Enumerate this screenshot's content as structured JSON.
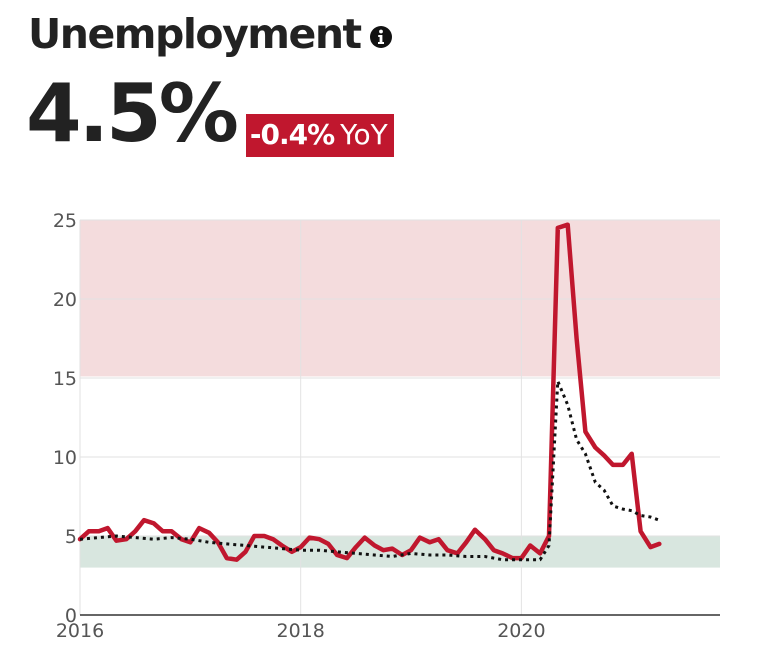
{
  "header": {
    "title": "Unemployment",
    "value": "4.5%",
    "change": "-0.4%",
    "change_unit": "YoY",
    "info_icon": "info-circle-icon"
  },
  "colors": {
    "primary_line": "#c0172e",
    "badge": "#c0172e",
    "high_band": "#f4dcdd",
    "low_band": "#d8e6df",
    "reference_line": "#111111"
  },
  "chart_data": {
    "type": "line",
    "title": "",
    "xlabel": "",
    "ylabel": "",
    "xlim": [
      2016.0,
      2021.8
    ],
    "ylim": [
      0,
      25
    ],
    "x_ticks": [
      "2016",
      "2018",
      "2020"
    ],
    "y_ticks": [
      "0",
      "5",
      "10",
      "15",
      "20",
      "25"
    ],
    "grid": true,
    "bands": [
      {
        "from": 3,
        "to": 5,
        "color": "#d8e6df"
      },
      {
        "from": 15.1,
        "to": 25,
        "color": "#f4dcdd"
      }
    ],
    "series": [
      {
        "style": "solid",
        "color": "#c0172e",
        "points": [
          [
            2016.0,
            4.8
          ],
          [
            2016.08,
            5.3
          ],
          [
            2016.17,
            5.3
          ],
          [
            2016.25,
            5.5
          ],
          [
            2016.33,
            4.7
          ],
          [
            2016.42,
            4.8
          ],
          [
            2016.5,
            5.3
          ],
          [
            2016.58,
            6.0
          ],
          [
            2016.67,
            5.8
          ],
          [
            2016.75,
            5.3
          ],
          [
            2016.83,
            5.3
          ],
          [
            2016.92,
            4.8
          ],
          [
            2017.0,
            4.6
          ],
          [
            2017.08,
            5.5
          ],
          [
            2017.17,
            5.2
          ],
          [
            2017.25,
            4.6
          ],
          [
            2017.33,
            3.6
          ],
          [
            2017.42,
            3.5
          ],
          [
            2017.5,
            4.0
          ],
          [
            2017.58,
            5.0
          ],
          [
            2017.67,
            5.0
          ],
          [
            2017.75,
            4.8
          ],
          [
            2017.83,
            4.4
          ],
          [
            2017.92,
            4.0
          ],
          [
            2018.0,
            4.3
          ],
          [
            2018.08,
            4.9
          ],
          [
            2018.17,
            4.8
          ],
          [
            2018.25,
            4.5
          ],
          [
            2018.33,
            3.8
          ],
          [
            2018.42,
            3.6
          ],
          [
            2018.5,
            4.3
          ],
          [
            2018.58,
            4.9
          ],
          [
            2018.67,
            4.4
          ],
          [
            2018.75,
            4.1
          ],
          [
            2018.83,
            4.2
          ],
          [
            2018.92,
            3.8
          ],
          [
            2019.0,
            4.1
          ],
          [
            2019.08,
            4.9
          ],
          [
            2019.17,
            4.6
          ],
          [
            2019.25,
            4.8
          ],
          [
            2019.33,
            4.1
          ],
          [
            2019.42,
            3.9
          ],
          [
            2019.5,
            4.6
          ],
          [
            2019.58,
            5.4
          ],
          [
            2019.67,
            4.8
          ],
          [
            2019.75,
            4.1
          ],
          [
            2019.83,
            3.9
          ],
          [
            2019.92,
            3.6
          ],
          [
            2020.0,
            3.6
          ],
          [
            2020.08,
            4.4
          ],
          [
            2020.17,
            3.9
          ],
          [
            2020.25,
            5.0
          ],
          [
            2020.33,
            24.5
          ],
          [
            2020.42,
            24.7
          ],
          [
            2020.5,
            17.5
          ],
          [
            2020.58,
            11.6
          ],
          [
            2020.67,
            10.6
          ],
          [
            2020.75,
            10.1
          ],
          [
            2020.83,
            9.5
          ],
          [
            2020.92,
            9.5
          ],
          [
            2021.0,
            10.2
          ],
          [
            2021.08,
            5.3
          ],
          [
            2021.17,
            4.3
          ],
          [
            2021.25,
            4.5
          ]
        ]
      },
      {
        "style": "dotted",
        "color": "#111111",
        "points": [
          [
            2016.0,
            4.8
          ],
          [
            2016.17,
            4.9
          ],
          [
            2016.33,
            5.0
          ],
          [
            2016.5,
            4.9
          ],
          [
            2016.67,
            4.8
          ],
          [
            2016.83,
            4.9
          ],
          [
            2017.0,
            4.8
          ],
          [
            2017.17,
            4.6
          ],
          [
            2017.33,
            4.5
          ],
          [
            2017.5,
            4.4
          ],
          [
            2017.67,
            4.3
          ],
          [
            2017.83,
            4.2
          ],
          [
            2018.0,
            4.1
          ],
          [
            2018.17,
            4.1
          ],
          [
            2018.33,
            4.0
          ],
          [
            2018.5,
            3.9
          ],
          [
            2018.67,
            3.8
          ],
          [
            2018.83,
            3.7
          ],
          [
            2019.0,
            3.9
          ],
          [
            2019.17,
            3.8
          ],
          [
            2019.33,
            3.8
          ],
          [
            2019.5,
            3.7
          ],
          [
            2019.67,
            3.7
          ],
          [
            2019.83,
            3.5
          ],
          [
            2020.0,
            3.5
          ],
          [
            2020.17,
            3.5
          ],
          [
            2020.25,
            4.4
          ],
          [
            2020.33,
            14.8
          ],
          [
            2020.42,
            13.3
          ],
          [
            2020.5,
            11.1
          ],
          [
            2020.58,
            10.2
          ],
          [
            2020.67,
            8.4
          ],
          [
            2020.75,
            7.9
          ],
          [
            2020.83,
            6.9
          ],
          [
            2020.92,
            6.7
          ],
          [
            2021.0,
            6.6
          ],
          [
            2021.08,
            6.3
          ],
          [
            2021.17,
            6.2
          ],
          [
            2021.25,
            6.0
          ]
        ]
      }
    ]
  }
}
